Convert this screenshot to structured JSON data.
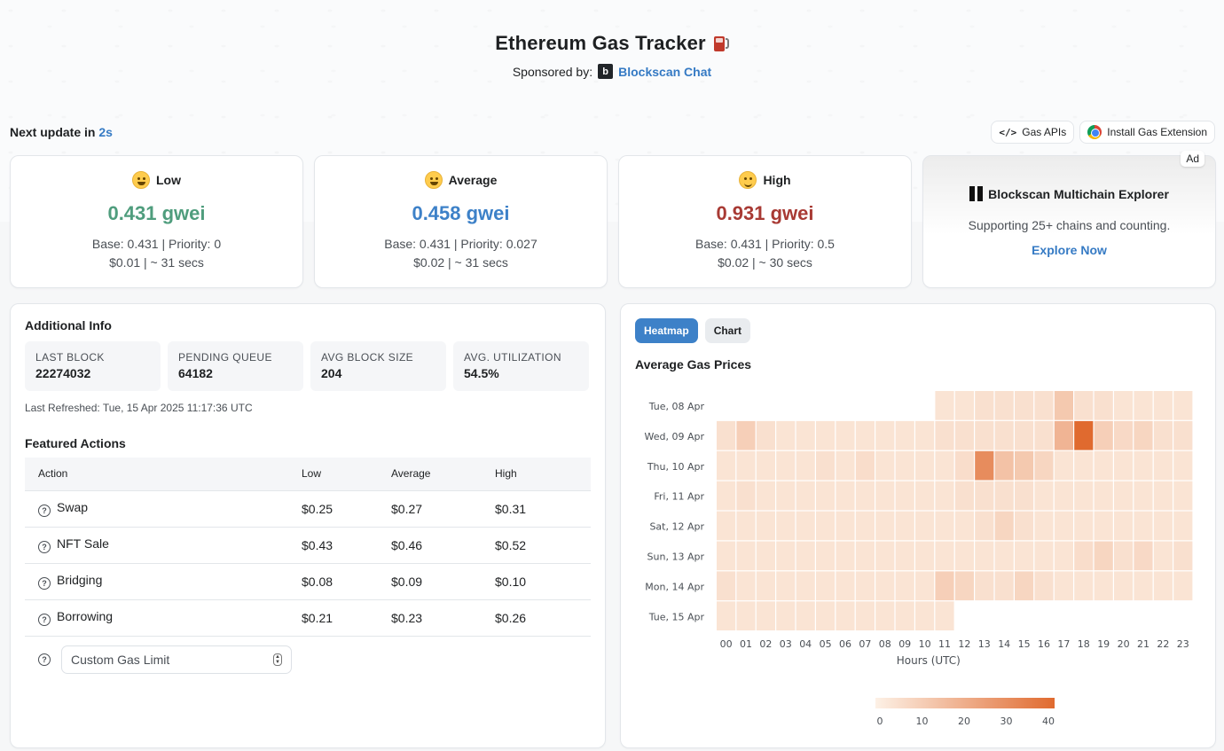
{
  "header": {
    "title": "Ethereum Gas Tracker",
    "sponsor_label": "Sponsored by:",
    "sponsor_name": "Blockscan Chat"
  },
  "update": {
    "prefix": "Next update in",
    "seconds": "2s"
  },
  "top_buttons": {
    "gas_apis": "Gas APIs",
    "extension": "Install Gas Extension"
  },
  "gas_cards": [
    {
      "label": "Low",
      "value": "0.431 gwei",
      "detail1": "Base: 0.431 | Priority: 0",
      "detail2": "$0.01 | ~ 31 secs",
      "color": "#4f9d7d"
    },
    {
      "label": "Average",
      "value": "0.458 gwei",
      "detail1": "Base: 0.431 | Priority: 0.027",
      "detail2": "$0.02 | ~ 31 secs",
      "color": "#3d81c8"
    },
    {
      "label": "High",
      "value": "0.931 gwei",
      "detail1": "Base: 0.431 | Priority: 0.5",
      "detail2": "$0.02 | ~ 30 secs",
      "color": "#a83a34"
    }
  ],
  "ad": {
    "badge": "Ad",
    "title": "Blockscan Multichain Explorer",
    "text": "Supporting 25+ chains and counting.",
    "link": "Explore Now"
  },
  "info": {
    "title": "Additional Info",
    "stats": [
      {
        "label": "LAST BLOCK",
        "value": "22274032"
      },
      {
        "label": "PENDING QUEUE",
        "value": "64182"
      },
      {
        "label": "AVG BLOCK SIZE",
        "value": "204"
      },
      {
        "label": "AVG. UTILIZATION",
        "value": "54.5%"
      }
    ],
    "refreshed": "Last Refreshed: Tue, 15 Apr 2025 11:17:36 UTC",
    "featured_title": "Featured Actions",
    "columns": [
      "Action",
      "Low",
      "Average",
      "High"
    ],
    "rows": [
      {
        "action": "Swap",
        "low": "$0.25",
        "avg": "$0.27",
        "high": "$0.31"
      },
      {
        "action": "NFT Sale",
        "low": "$0.43",
        "avg": "$0.46",
        "high": "$0.52"
      },
      {
        "action": "Bridging",
        "low": "$0.08",
        "avg": "$0.09",
        "high": "$0.10"
      },
      {
        "action": "Borrowing",
        "low": "$0.21",
        "avg": "$0.23",
        "high": "$0.26"
      }
    ],
    "custom_placeholder": "Custom Gas Limit"
  },
  "heatmap_panel": {
    "tabs": [
      "Heatmap",
      "Chart"
    ],
    "title": "Average Gas Prices"
  },
  "chart_data": {
    "type": "heatmap",
    "title": "Average Gas Prices",
    "xlabel": "Hours (UTC)",
    "ylabel": "",
    "x": [
      "00",
      "01",
      "02",
      "03",
      "04",
      "05",
      "06",
      "07",
      "08",
      "09",
      "10",
      "11",
      "12",
      "13",
      "14",
      "15",
      "16",
      "17",
      "18",
      "19",
      "20",
      "21",
      "22",
      "23"
    ],
    "y": [
      "Tue, 08 Apr",
      "Wed, 09 Apr",
      "Thu, 10 Apr",
      "Fri, 11 Apr",
      "Sat, 12 Apr",
      "Sun, 13 Apr",
      "Mon, 14 Apr",
      "Tue, 15 Apr"
    ],
    "values": [
      [
        null,
        null,
        null,
        null,
        null,
        null,
        null,
        null,
        null,
        null,
        null,
        4,
        4,
        5,
        5,
        5,
        5,
        12,
        5,
        5,
        4,
        4,
        4,
        4
      ],
      [
        5,
        10,
        5,
        4,
        4,
        4,
        4,
        4,
        4,
        4,
        4,
        5,
        5,
        5,
        5,
        5,
        5,
        18,
        40,
        10,
        7,
        8,
        5,
        5
      ],
      [
        4,
        4,
        4,
        4,
        4,
        5,
        4,
        6,
        4,
        4,
        4,
        4,
        6,
        30,
        14,
        12,
        8,
        4,
        4,
        4,
        4,
        4,
        4,
        4
      ],
      [
        4,
        5,
        4,
        4,
        4,
        4,
        4,
        4,
        4,
        4,
        4,
        4,
        5,
        5,
        5,
        5,
        4,
        4,
        4,
        4,
        4,
        4,
        4,
        4
      ],
      [
        4,
        4,
        4,
        4,
        4,
        4,
        4,
        4,
        4,
        4,
        4,
        4,
        4,
        5,
        8,
        5,
        4,
        4,
        4,
        4,
        4,
        4,
        4,
        4
      ],
      [
        4,
        4,
        4,
        4,
        4,
        4,
        4,
        4,
        4,
        4,
        4,
        4,
        4,
        4,
        4,
        4,
        4,
        4,
        6,
        8,
        5,
        7,
        4,
        5
      ],
      [
        5,
        4,
        4,
        4,
        4,
        4,
        4,
        4,
        4,
        4,
        4,
        10,
        8,
        5,
        5,
        8,
        5,
        4,
        4,
        4,
        4,
        4,
        4,
        4
      ],
      [
        4,
        4,
        4,
        4,
        4,
        4,
        4,
        4,
        4,
        4,
        4,
        4,
        null,
        null,
        null,
        null,
        null,
        null,
        null,
        null,
        null,
        null,
        null,
        null
      ]
    ],
    "color_range": [
      0,
      40
    ],
    "colorbar_ticks": [
      "0",
      "10",
      "20",
      "30",
      "40"
    ],
    "colors": {
      "low": "#fdf1e6",
      "high": "#e06a2f"
    }
  }
}
